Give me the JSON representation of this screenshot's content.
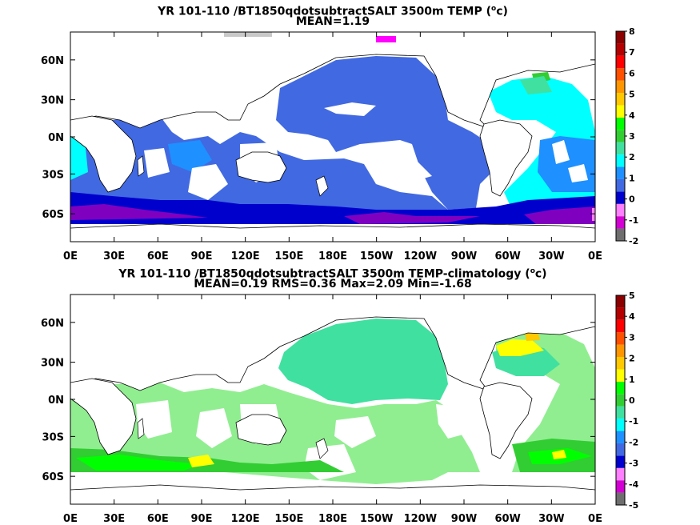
{
  "panels": [
    {
      "title_main": "YR 101-110 /BT1850qdotsubtractSALT 3500m TEMP (",
      "title_unit": "o",
      "title_end": "c)",
      "stats": "MEAN=1.19",
      "colorbar_labels": [
        "8",
        "7",
        "6",
        "5",
        "4",
        "3",
        "2",
        "1",
        "0",
        "-1",
        "-2"
      ]
    },
    {
      "title_main": "YR 101-110 /BT1850qdotsubtractSALT 3500m TEMP-climatology (",
      "title_unit": "o",
      "title_end": "c)",
      "stats": "MEAN=0.19   RMS=0.36   Max=2.09   Min=-1.68",
      "colorbar_labels": [
        "5",
        "4",
        "3",
        "2",
        "1",
        "0",
        "-1",
        "-2",
        "-3",
        "-4",
        "-5"
      ]
    }
  ],
  "lat_labels": [
    "60N",
    "30N",
    "0N",
    "30S",
    "60S"
  ],
  "lon_labels": [
    "0E",
    "30E",
    "60E",
    "90E",
    "120E",
    "150E",
    "180E",
    "150W",
    "120W",
    "90W",
    "60W",
    "30W",
    "0E"
  ],
  "colors": {
    "colorbar": [
      "#6e6e6e",
      "#d200d2",
      "#ff80ff",
      "#0000cd",
      "#4169e1",
      "#1e90ff",
      "#00ffff",
      "#40e0a0",
      "#32cd32",
      "#00ff00",
      "#ffff00",
      "#ffc800",
      "#ff9600",
      "#ff5000",
      "#ff0000",
      "#b40000",
      "#8b0000"
    ],
    "panel1": {
      "land": "#ffffff",
      "main": "#4169e1",
      "light": "#1e90ff",
      "atlantic": "#00ffff",
      "south": "#0000cd",
      "antarctic": "#8000c0"
    },
    "panel2": {
      "land": "#ffffff",
      "main": "#40e0a0",
      "light": "#90ee90",
      "green": "#32cd32",
      "bright": "#00ff00",
      "yellow": "#ffff00"
    }
  }
}
